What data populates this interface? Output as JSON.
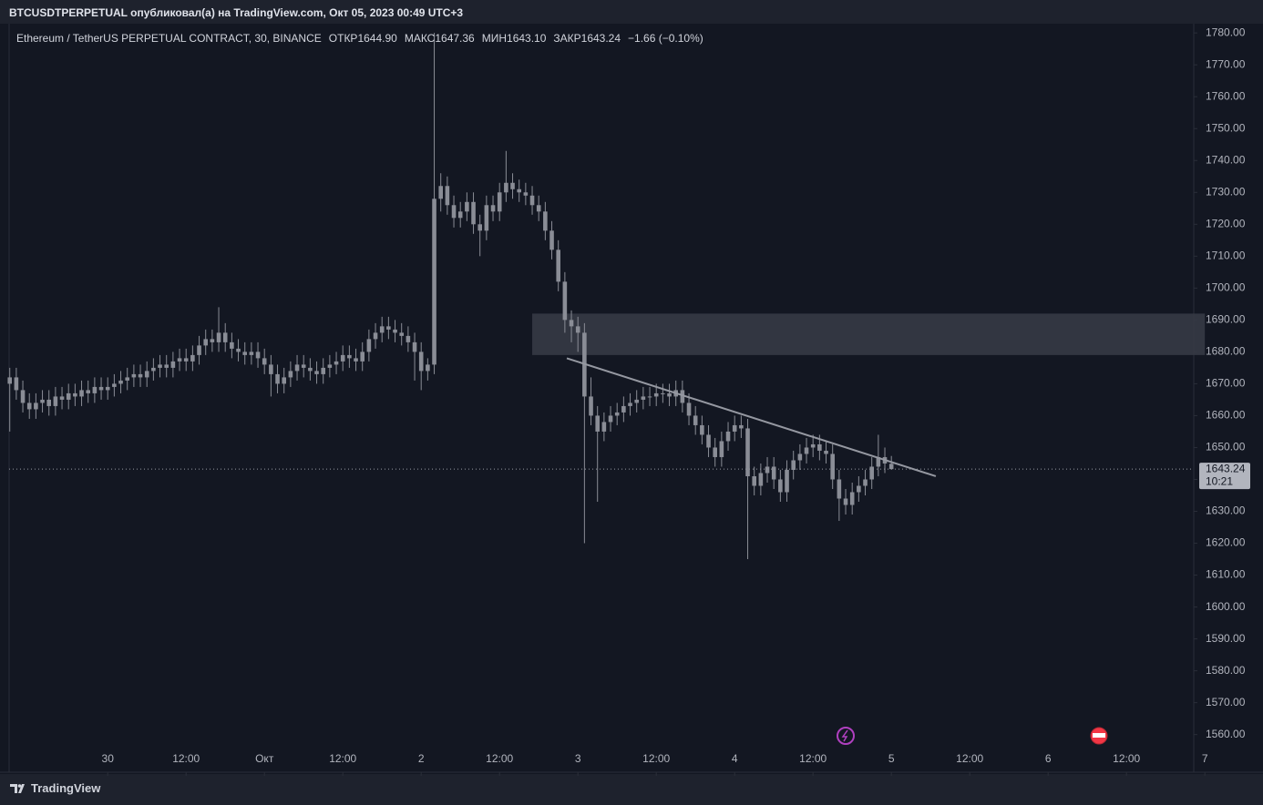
{
  "chart_data": {
    "type": "candlestick",
    "header": "BTCUSDTPERPETUAL опубликовал(а) на TradingView.com, Окт 05, 2023 00:49 UTC+3",
    "legend": [
      "Ethereum / TetherUS PERPETUAL CONTRACT, 30, BINANCE",
      "ОТКР1644.90",
      "МАКС1647.36",
      "МИН1643.10",
      "ЗАКР1643.24",
      "−1.66 (−0.10%)"
    ],
    "countdown": "10:21",
    "brand": "TradingView",
    "candle_color": "#8a8d96",
    "background": "#131722",
    "xlim": [
      -15.1,
      166.3
    ],
    "ylim": [
      1548.2,
      1782.9
    ],
    "xticks": [
      {
        "value": 0,
        "label": "30"
      },
      {
        "value": 12,
        "label": "12:00"
      },
      {
        "value": 24,
        "label": "Окт"
      },
      {
        "value": 36,
        "label": "12:00"
      },
      {
        "value": 48,
        "label": "2"
      },
      {
        "value": 60,
        "label": "12:00"
      },
      {
        "value": 72,
        "label": "3"
      },
      {
        "value": 84,
        "label": "12:00"
      },
      {
        "value": 96,
        "label": "4"
      },
      {
        "value": 108,
        "label": "12:00"
      },
      {
        "value": 120,
        "label": "5"
      },
      {
        "value": 132,
        "label": "12:00"
      },
      {
        "value": 144,
        "label": "6"
      },
      {
        "value": 156,
        "label": "12:00"
      },
      {
        "value": 168,
        "label": "7"
      }
    ],
    "yticks": [
      {
        "value": 1780,
        "label": "1780.00"
      },
      {
        "value": 1770,
        "label": "1770.00"
      },
      {
        "value": 1760,
        "label": "1760.00"
      },
      {
        "value": 1750,
        "label": "1750.00"
      },
      {
        "value": 1740,
        "label": "1740.00"
      },
      {
        "value": 1730,
        "label": "1730.00"
      },
      {
        "value": 1720,
        "label": "1720.00"
      },
      {
        "value": 1710,
        "label": "1710.00"
      },
      {
        "value": 1700,
        "label": "1700.00"
      },
      {
        "value": 1690,
        "label": "1690.00"
      },
      {
        "value": 1680,
        "label": "1680.00"
      },
      {
        "value": 1670,
        "label": "1670.00"
      },
      {
        "value": 1660,
        "label": "1660.00"
      },
      {
        "value": 1650,
        "label": "1650.00"
      },
      {
        "value": 1640,
        "label": "1640.00"
      },
      {
        "value": 1630,
        "label": "1630.00"
      },
      {
        "value": 1620,
        "label": "1620.00"
      },
      {
        "value": 1610,
        "label": "1610.00"
      },
      {
        "value": 1600,
        "label": "1600.00"
      },
      {
        "value": 1590,
        "label": "1590.00"
      },
      {
        "value": 1580,
        "label": "1580.00"
      },
      {
        "value": 1570,
        "label": "1570.00"
      },
      {
        "value": 1560,
        "label": "1560.00"
      }
    ],
    "x": [
      -15,
      -14,
      -13,
      -12,
      -11,
      -10,
      -9,
      -8,
      -7,
      -6,
      -5,
      -4,
      -3,
      -2,
      -1,
      0,
      1,
      2,
      3,
      4,
      5,
      6,
      7,
      8,
      9,
      10,
      11,
      12,
      13,
      14,
      15,
      16,
      17,
      18,
      19,
      20,
      21,
      22,
      23,
      24,
      25,
      26,
      27,
      28,
      29,
      30,
      31,
      32,
      33,
      34,
      35,
      36,
      37,
      38,
      39,
      40,
      41,
      42,
      43,
      44,
      45,
      46,
      47,
      48,
      49,
      50,
      51,
      52,
      53,
      54,
      55,
      56,
      57,
      58,
      59,
      60,
      61,
      62,
      63,
      64,
      65,
      66,
      67,
      68,
      69,
      70,
      71,
      72,
      73,
      74,
      75,
      76,
      77,
      78,
      79,
      80,
      81,
      82,
      83,
      84,
      85,
      86,
      87,
      88,
      89,
      90,
      91,
      92,
      93,
      94,
      95,
      96,
      97,
      98,
      99,
      100,
      101,
      102,
      103,
      104,
      105,
      106,
      107,
      108,
      109,
      110,
      111,
      112,
      113,
      114,
      115,
      116,
      117,
      118,
      119,
      120
    ],
    "open": [
      1670,
      1672,
      1668,
      1664,
      1662,
      1664,
      1665,
      1663,
      1666,
      1665,
      1667,
      1666,
      1668,
      1667,
      1669,
      1668,
      1669,
      1670,
      1671,
      1672,
      1673,
      1672,
      1674,
      1675,
      1676,
      1675,
      1677,
      1678,
      1677,
      1679,
      1682,
      1684,
      1683,
      1686,
      1683,
      1681,
      1680,
      1679,
      1680,
      1678,
      1676,
      1673,
      1670,
      1672,
      1674,
      1676,
      1675,
      1674,
      1673,
      1675,
      1676,
      1677,
      1679,
      1678,
      1677,
      1680,
      1684,
      1686,
      1688,
      1687,
      1686,
      1685,
      1683,
      1680,
      1674,
      1676,
      1728,
      1732,
      1726,
      1722,
      1724,
      1727,
      1720,
      1718,
      1726,
      1724,
      1730,
      1733,
      1731,
      1730,
      1729,
      1726,
      1724,
      1718,
      1712,
      1702,
      1690,
      1688,
      1686,
      1666,
      1660,
      1655,
      1658,
      1660,
      1661,
      1663,
      1664,
      1665,
      1666,
      1666,
      1667,
      1667,
      1666,
      1668,
      1664,
      1660,
      1657,
      1654,
      1650,
      1647,
      1652,
      1655,
      1657,
      1656,
      1641,
      1638,
      1642,
      1644,
      1640,
      1636,
      1643,
      1646,
      1648,
      1650,
      1651,
      1649,
      1648,
      1640,
      1634,
      1632,
      1636,
      1638,
      1640,
      1644,
      1647,
      1644.9
    ],
    "high": [
      1675,
      1675,
      1671,
      1667,
      1667,
      1668,
      1668,
      1669,
      1669,
      1670,
      1670,
      1671,
      1671,
      1672,
      1672,
      1672,
      1673,
      1674,
      1675,
      1676,
      1676,
      1677,
      1678,
      1679,
      1679,
      1680,
      1681,
      1681,
      1682,
      1685,
      1687,
      1687,
      1694,
      1689,
      1686,
      1684,
      1683,
      1683,
      1683,
      1681,
      1679,
      1676,
      1675,
      1677,
      1679,
      1679,
      1678,
      1677,
      1678,
      1679,
      1680,
      1682,
      1682,
      1681,
      1683,
      1687,
      1689,
      1691,
      1691,
      1690,
      1689,
      1688,
      1686,
      1683,
      1678,
      1780,
      1736,
      1735,
      1729,
      1727,
      1730,
      1730,
      1723,
      1729,
      1729,
      1733,
      1743,
      1736,
      1734,
      1733,
      1732,
      1729,
      1727,
      1721,
      1715,
      1705,
      1693,
      1691,
      1689,
      1672,
      1663,
      1661,
      1663,
      1664,
      1666,
      1667,
      1668,
      1669,
      1669,
      1670,
      1670,
      1670,
      1671,
      1671,
      1667,
      1663,
      1660,
      1657,
      1653,
      1655,
      1658,
      1660,
      1660,
      1659,
      1644,
      1645,
      1647,
      1647,
      1643,
      1646,
      1649,
      1651,
      1653,
      1654,
      1654,
      1652,
      1651,
      1643,
      1637,
      1639,
      1641,
      1643,
      1647,
      1654,
      1650,
      1647.36
    ],
    "low": [
      1655,
      1665,
      1661,
      1659,
      1659,
      1661,
      1660,
      1660,
      1662,
      1662,
      1663,
      1663,
      1664,
      1664,
      1665,
      1665,
      1666,
      1667,
      1668,
      1669,
      1669,
      1669,
      1671,
      1672,
      1672,
      1672,
      1674,
      1674,
      1674,
      1676,
      1679,
      1680,
      1680,
      1680,
      1678,
      1677,
      1676,
      1676,
      1675,
      1673,
      1666,
      1667,
      1667,
      1669,
      1671,
      1672,
      1671,
      1670,
      1670,
      1672,
      1673,
      1674,
      1675,
      1674,
      1674,
      1677,
      1681,
      1683,
      1684,
      1683,
      1682,
      1680,
      1671,
      1668,
      1671,
      1673,
      1724,
      1723,
      1719,
      1719,
      1721,
      1717,
      1710,
      1715,
      1721,
      1721,
      1727,
      1728,
      1727,
      1726,
      1723,
      1721,
      1715,
      1709,
      1699,
      1686,
      1683,
      1680,
      1620,
      1657,
      1633,
      1652,
      1655,
      1657,
      1658,
      1660,
      1661,
      1662,
      1663,
      1663,
      1664,
      1663,
      1663,
      1661,
      1657,
      1654,
      1651,
      1647,
      1644,
      1644,
      1649,
      1652,
      1653,
      1615,
      1635,
      1635,
      1639,
      1637,
      1633,
      1633,
      1640,
      1643,
      1645,
      1647,
      1646,
      1645,
      1637,
      1627,
      1629,
      1629,
      1633,
      1635,
      1637,
      1641,
      1642,
      1643.1
    ],
    "close": [
      1672,
      1668,
      1664,
      1662,
      1664,
      1665,
      1663,
      1666,
      1665,
      1667,
      1666,
      1668,
      1667,
      1669,
      1668,
      1669,
      1670,
      1671,
      1672,
      1673,
      1672,
      1674,
      1675,
      1676,
      1675,
      1677,
      1678,
      1677,
      1679,
      1682,
      1684,
      1683,
      1686,
      1683,
      1681,
      1680,
      1679,
      1680,
      1678,
      1676,
      1673,
      1670,
      1672,
      1674,
      1676,
      1675,
      1674,
      1673,
      1675,
      1676,
      1677,
      1679,
      1678,
      1677,
      1680,
      1684,
      1686,
      1688,
      1687,
      1686,
      1685,
      1683,
      1680,
      1674,
      1676,
      1728,
      1732,
      1726,
      1722,
      1724,
      1727,
      1720,
      1718,
      1726,
      1724,
      1730,
      1733,
      1731,
      1730,
      1729,
      1726,
      1724,
      1718,
      1712,
      1702,
      1690,
      1688,
      1686,
      1666,
      1660,
      1655,
      1658,
      1660,
      1661,
      1663,
      1664,
      1665,
      1666,
      1666,
      1667,
      1667,
      1666,
      1668,
      1664,
      1660,
      1657,
      1654,
      1650,
      1647,
      1652,
      1655,
      1657,
      1656,
      1641,
      1638,
      1642,
      1644,
      1640,
      1636,
      1643,
      1646,
      1648,
      1650,
      1651,
      1649,
      1648,
      1640,
      1634,
      1632,
      1636,
      1638,
      1640,
      1644,
      1647,
      1645,
      1643.24
    ],
    "zone": {
      "x": [
        65,
        168
      ],
      "y": [
        1679,
        1692
      ],
      "color": "#363a45"
    },
    "trendline": {
      "x": [
        70.3,
        126.8
      ],
      "y": [
        1678,
        1641
      ],
      "color": "#9598a1"
    }
  }
}
